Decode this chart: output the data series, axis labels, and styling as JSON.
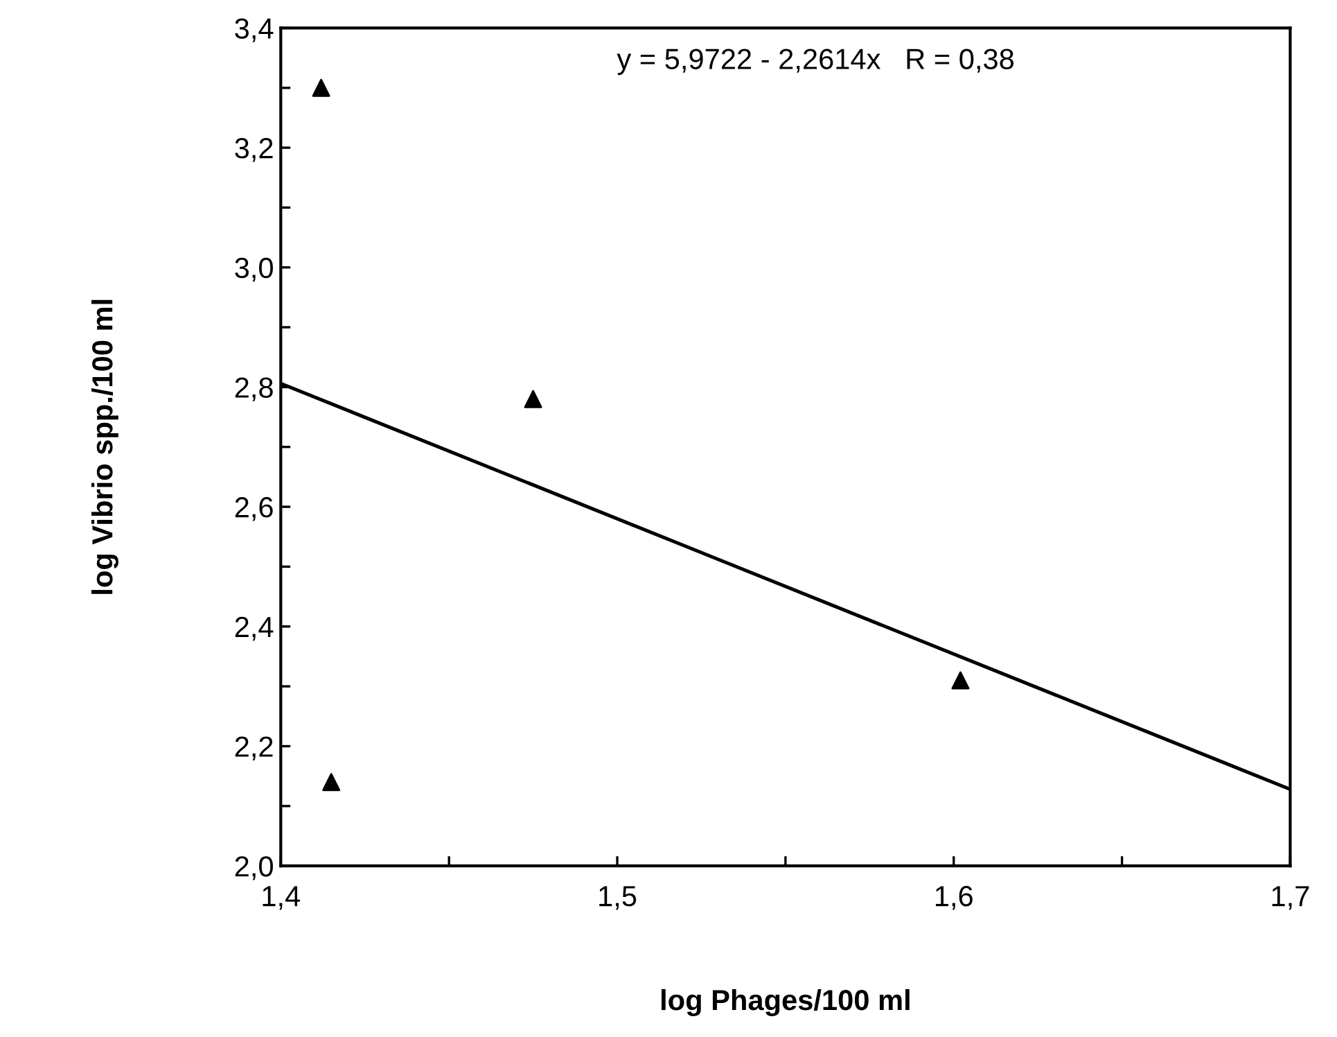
{
  "chart_data": {
    "type": "scatter",
    "xlabel": "log Phages/100 ml",
    "ylabel": "log Vibrio spp./100 ml",
    "annotations": [
      "y = 5,9722 - 2,2614x   R = 0,38"
    ],
    "x": [
      1.412,
      1.415,
      1.475,
      1.602
    ],
    "series": [
      {
        "color": "#000000",
        "marker": "triangle",
        "values": [
          3.3,
          2.14,
          2.78,
          2.31
        ]
      },
      {
        "type": "line",
        "color": "#000000",
        "marker": "none",
        "line_style": "solid",
        "x": [
          1.4,
          1.7
        ],
        "values": [
          2.806,
          2.128
        ]
      }
    ],
    "xlim": [
      1.4,
      1.7
    ],
    "xticks": [
      {
        "value": 1.4,
        "label": "1,4"
      },
      {
        "value": 1.45,
        "label": null
      },
      {
        "value": 1.5,
        "label": "1,5"
      },
      {
        "value": 1.55,
        "label": null
      },
      {
        "value": 1.6,
        "label": "1,6"
      },
      {
        "value": 1.65,
        "label": null
      },
      {
        "value": 1.7,
        "label": "1,7"
      }
    ],
    "ylim": [
      2.0,
      3.4
    ],
    "yticks": [
      {
        "value": 2.0,
        "label": "2,0"
      },
      {
        "value": 2.1,
        "label": null
      },
      {
        "value": 2.2,
        "label": "2,2"
      },
      {
        "value": 2.3,
        "label": null
      },
      {
        "value": 2.4,
        "label": "2,4"
      },
      {
        "value": 2.5,
        "label": null
      },
      {
        "value": 2.6,
        "label": "2,6"
      },
      {
        "value": 2.7,
        "label": null
      },
      {
        "value": 2.8,
        "label": "2,8"
      },
      {
        "value": 2.9,
        "label": null
      },
      {
        "value": 3.0,
        "label": "3,0"
      },
      {
        "value": 3.1,
        "label": null
      },
      {
        "value": 3.2,
        "label": "3,2"
      },
      {
        "value": 3.3,
        "label": null
      },
      {
        "value": 3.4,
        "label": "3,4"
      }
    ],
    "grid": false,
    "legend": false
  }
}
